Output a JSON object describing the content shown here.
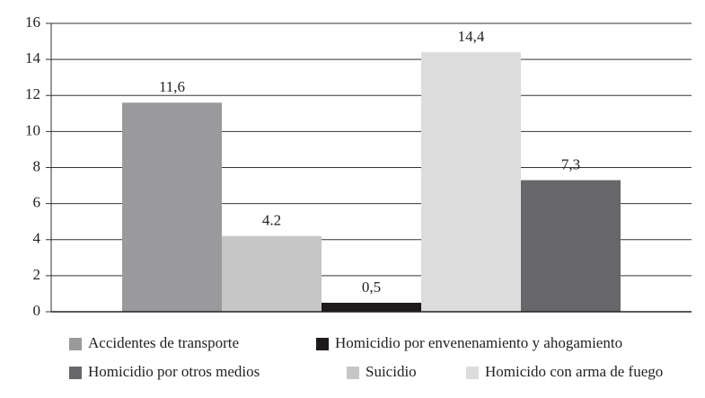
{
  "chart_data": {
    "type": "bar",
    "series": [
      {
        "name": "Accidentes de transporte",
        "color": "#9a9a9c",
        "values": [
          11.6
        ],
        "value_labels": [
          "11,6"
        ]
      },
      {
        "name": "Suicidio",
        "color": "#c6c6c7",
        "values": [
          4.2
        ],
        "value_labels": [
          "4.2"
        ]
      },
      {
        "name": "Homicidio por envenenamiento y ahogamiento",
        "color": "#1e1a1b",
        "values": [
          0.5
        ],
        "value_labels": [
          "0,5"
        ]
      },
      {
        "name": "Homicido con arma de fuego",
        "color": "#dcdcdd",
        "values": [
          14.4
        ],
        "value_labels": [
          "14,4"
        ]
      },
      {
        "name": "Homicidio por otros medios",
        "color": "#67676a",
        "values": [
          7.3
        ],
        "value_labels": [
          "7,3"
        ]
      }
    ],
    "ylim": [
      0,
      16
    ],
    "yticks": [
      0,
      2,
      4,
      6,
      8,
      10,
      12,
      14,
      16
    ],
    "grid": true
  }
}
